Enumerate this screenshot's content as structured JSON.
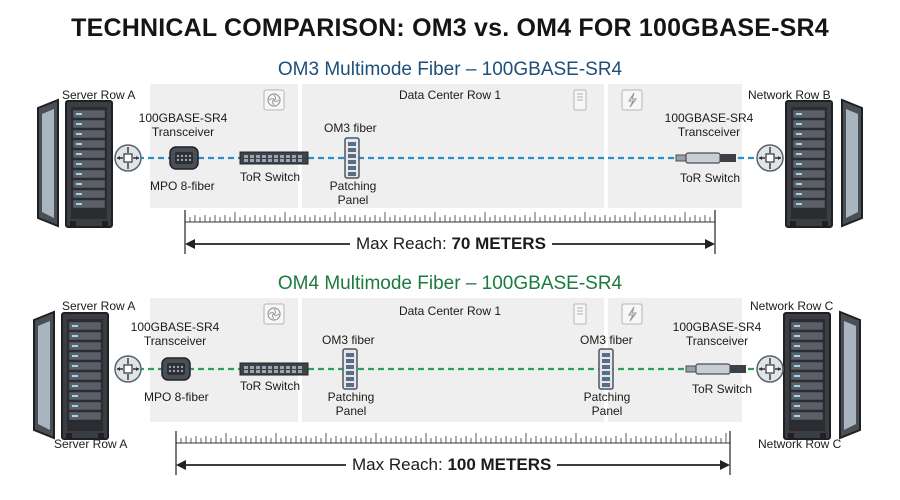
{
  "title": "TECHNICAL COMPARISON: OM3 vs. OM4 FOR 100GBASE-SR4",
  "om3": {
    "title": "OM3 Multimode Fiber – 100GBASE-SR4",
    "left_row": "Server Row A",
    "center_row": "Data Center Row 1",
    "right_row": "Network Row B",
    "left_transceiver": "100GBASE-SR4\nTransceiver",
    "right_transceiver": "100GBASE-SR4\nTransceiver",
    "mpo": "MPO 8-fiber",
    "tor_left": "ToR Switch",
    "tor_right": "ToR Switch",
    "fiber": "OM3 fiber",
    "patch": "Patching\nPanel",
    "reach_prefix": "Max Reach: ",
    "reach_value": "70 METERS",
    "fiber_color": "#2a8fc7"
  },
  "om4": {
    "title": "OM4 Multimode Fiber – 100GBASE-SR4",
    "left_row": "Server Row A",
    "center_row": "Data Center Row 1",
    "right_row": "Network Row C",
    "left_transceiver": "100GBASE-SR4\nTransceiver",
    "right_transceiver": "100GBASE-SR4\nTransceiver",
    "mpo": "MPO 8-fiber",
    "tor_left": "ToR Switch",
    "tor_right": "ToR Switch",
    "fiber_left": "OM3 fiber",
    "fiber_right": "OM3 fiber",
    "patch_left": "Patching\nPanel",
    "patch_right": "Patching\nPanel",
    "bottom_left_row": "Server Row A",
    "bottom_right_row": "Network Row C",
    "reach_prefix": "Max Reach: ",
    "reach_value": "100 METERS",
    "fiber_color": "#2aa35a"
  },
  "colors": {
    "om3_title": "#1f4e79",
    "om4_title": "#1c7a3e",
    "zone_fill": "#efefef"
  }
}
